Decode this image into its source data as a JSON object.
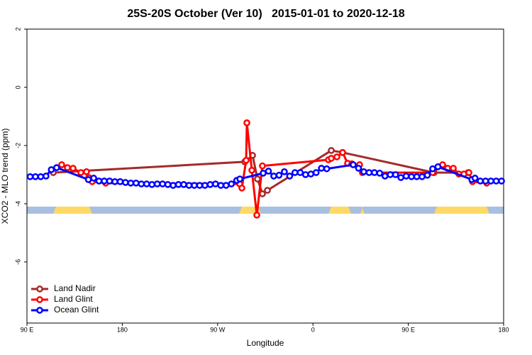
{
  "chart_data": {
    "type": "line",
    "title": "25S-20S October (Ver 10)   2015-01-01 to 2020-12-18",
    "x_label": "Longitude",
    "y_label": "XCO2 - MLO trend (ppm)",
    "xlim": [
      90,
      540
    ],
    "ylim": [
      -8.1,
      2
    ],
    "xticks": [
      {
        "value": 90,
        "label": "90 E"
      },
      180,
      {
        "value": 270,
        "label": "90 W"
      },
      {
        "value": 360,
        "label": "0"
      },
      {
        "value": 450,
        "label": "90 E"
      },
      {
        "value": 540,
        "label": "180"
      }
    ],
    "yticks": [
      2,
      0,
      -2,
      -4,
      -6
    ],
    "legend": "bottom-left",
    "land_color": "#ffd966",
    "ocean_color": "#a9bfe0",
    "land_spans": [
      [
        114.8,
        151.6
      ],
      [
        290.2,
        311
      ],
      [
        374.6,
        396
      ],
      [
        404.7,
        408.8
      ],
      [
        474.4,
        526.6
      ]
    ],
    "series": [
      {
        "name": "Land Nadir",
        "color": "#a52a2a",
        "x": [
          114.8,
          295.6,
          303,
          307.6,
          312.3,
          317,
          377.3,
          388,
          474.4,
          506.5
        ],
        "values": [
          -2.93,
          -2.56,
          -2.34,
          -3.15,
          -3.66,
          -3.54,
          -2.17,
          -2.24,
          -2.93,
          -2.93
        ]
      },
      {
        "name": "Land Glint",
        "color": "#ff0000",
        "x": [
          122.8,
          128.2,
          133.5,
          140.9,
          146.2,
          148.3,
          151.6,
          164.3,
          290.9,
          292.9,
          296.9,
          297.6,
          302.3,
          307,
          312.3,
          374.6,
          377.3,
          382.6,
          388,
          392.7,
          396.7,
          404,
          406.7,
          473,
          482.4,
          487.1,
          492.5,
          497.8,
          502.5,
          507.2,
          510.6,
          524
        ],
        "values": [
          -2.66,
          -2.76,
          -2.78,
          -2.93,
          -2.9,
          -3.1,
          -3.24,
          -3.29,
          -3.32,
          -3.46,
          -2.51,
          -1.22,
          -2.85,
          -4.39,
          -2.7,
          -2.49,
          -2.44,
          -2.39,
          -2.24,
          -2.61,
          -2.63,
          -2.66,
          -2.93,
          -2.93,
          -2.66,
          -2.78,
          -2.78,
          -2.98,
          -2.98,
          -2.93,
          -3.24,
          -3.29
        ]
      },
      {
        "name": "Ocean Glint",
        "color": "#0000ff",
        "x": [
          93,
          98,
          103,
          108,
          113,
          118,
          148,
          153,
          158,
          163,
          168,
          173,
          178,
          183,
          188,
          193,
          198,
          203,
          208,
          213,
          218,
          223,
          228,
          233,
          238,
          243,
          248,
          253,
          258,
          263,
          268,
          273,
          278,
          283,
          288,
          291,
          313,
          318,
          323,
          328,
          333,
          338,
          343,
          348,
          353,
          358,
          363,
          368,
          373,
          398,
          403,
          408,
          413,
          418,
          423,
          428,
          433,
          438,
          443,
          448,
          453,
          458,
          463,
          468,
          473,
          478,
          510,
          513,
          518,
          523,
          528,
          533,
          538
        ],
        "values": [
          -3.07,
          -3.07,
          -3.07,
          -3.05,
          -2.83,
          -2.76,
          -3.17,
          -3.12,
          -3.22,
          -3.22,
          -3.22,
          -3.24,
          -3.24,
          -3.27,
          -3.29,
          -3.29,
          -3.32,
          -3.32,
          -3.34,
          -3.32,
          -3.32,
          -3.34,
          -3.37,
          -3.34,
          -3.34,
          -3.37,
          -3.37,
          -3.37,
          -3.37,
          -3.34,
          -3.32,
          -3.37,
          -3.37,
          -3.32,
          -3.2,
          -3.15,
          -2.95,
          -2.88,
          -3.05,
          -3.02,
          -2.9,
          -3.05,
          -2.93,
          -2.93,
          -3.0,
          -2.98,
          -2.93,
          -2.78,
          -2.8,
          -2.66,
          -2.78,
          -2.9,
          -2.93,
          -2.93,
          -2.95,
          -3.05,
          -3.0,
          -3.0,
          -3.1,
          -3.05,
          -3.07,
          -3.07,
          -3.07,
          -3.02,
          -2.8,
          -2.73,
          -3.17,
          -3.12,
          -3.22,
          -3.22,
          -3.22,
          -3.22,
          -3.22
        ]
      }
    ]
  }
}
